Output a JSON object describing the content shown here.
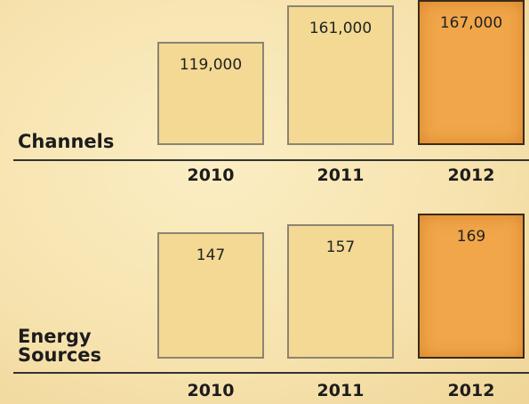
{
  "chart_data": [
    {
      "type": "bar",
      "title": "Channels",
      "categories": [
        "2010",
        "2011",
        "2012"
      ],
      "values": [
        119000,
        161000,
        167000
      ],
      "value_labels": [
        "119,000",
        "161,000",
        "167,000"
      ],
      "colors": [
        "#f3d994",
        "#f3d994",
        "#f1a64a"
      ]
    },
    {
      "type": "bar",
      "title": "Energy Sources",
      "categories": [
        "2010",
        "2011",
        "2012"
      ],
      "values": [
        147,
        157,
        169
      ],
      "colors": [
        "#f3d994",
        "#f3d994",
        "#f1a64a"
      ]
    }
  ]
}
